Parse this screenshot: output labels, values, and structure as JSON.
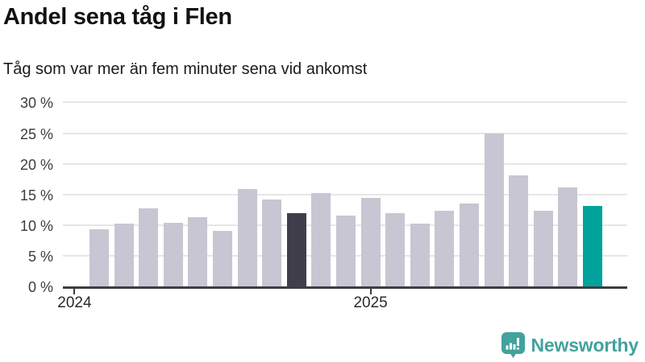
{
  "header": {
    "title": "Andel sena tåg i Flen",
    "subtitle": "Tåg som var mer än fem minuter sena vid ankomst"
  },
  "chart_data": {
    "type": "bar",
    "title": "Andel sena tåg i Flen",
    "subtitle": "Tåg som var mer än fem minuter sena vid ankomst",
    "values": [
      9.3,
      10.2,
      12.7,
      10.4,
      11.3,
      9.1,
      15.9,
      14.2,
      11.9,
      15.2,
      11.5,
      14.5,
      12.0,
      10.3,
      12.4,
      13.5,
      25.0,
      18.1,
      12.3,
      16.1,
      13.1
    ],
    "unit": "%",
    "ylim": [
      0,
      30
    ],
    "y_ticks": [
      0,
      5,
      10,
      15,
      20,
      25,
      30
    ],
    "y_tick_suffix": " %",
    "x_ticks": [
      {
        "label": "2024",
        "bar_index": -1
      },
      {
        "label": "2025",
        "bar_index": 11
      }
    ],
    "highlights": {
      "dark_index": 8,
      "teal_index": 20
    },
    "colors": {
      "default_bar": "#c8c6d2",
      "dark_bar": "#413e4c",
      "teal_bar": "#00a39b",
      "gridline": "#e6e6e6",
      "axis": "#3e3d42"
    },
    "grid": true,
    "legend": "none"
  },
  "footer": {
    "brand_label": "Newsworthy",
    "brand_color": "#42a29c",
    "icon": "newsworthy-chart-bubble-icon"
  }
}
